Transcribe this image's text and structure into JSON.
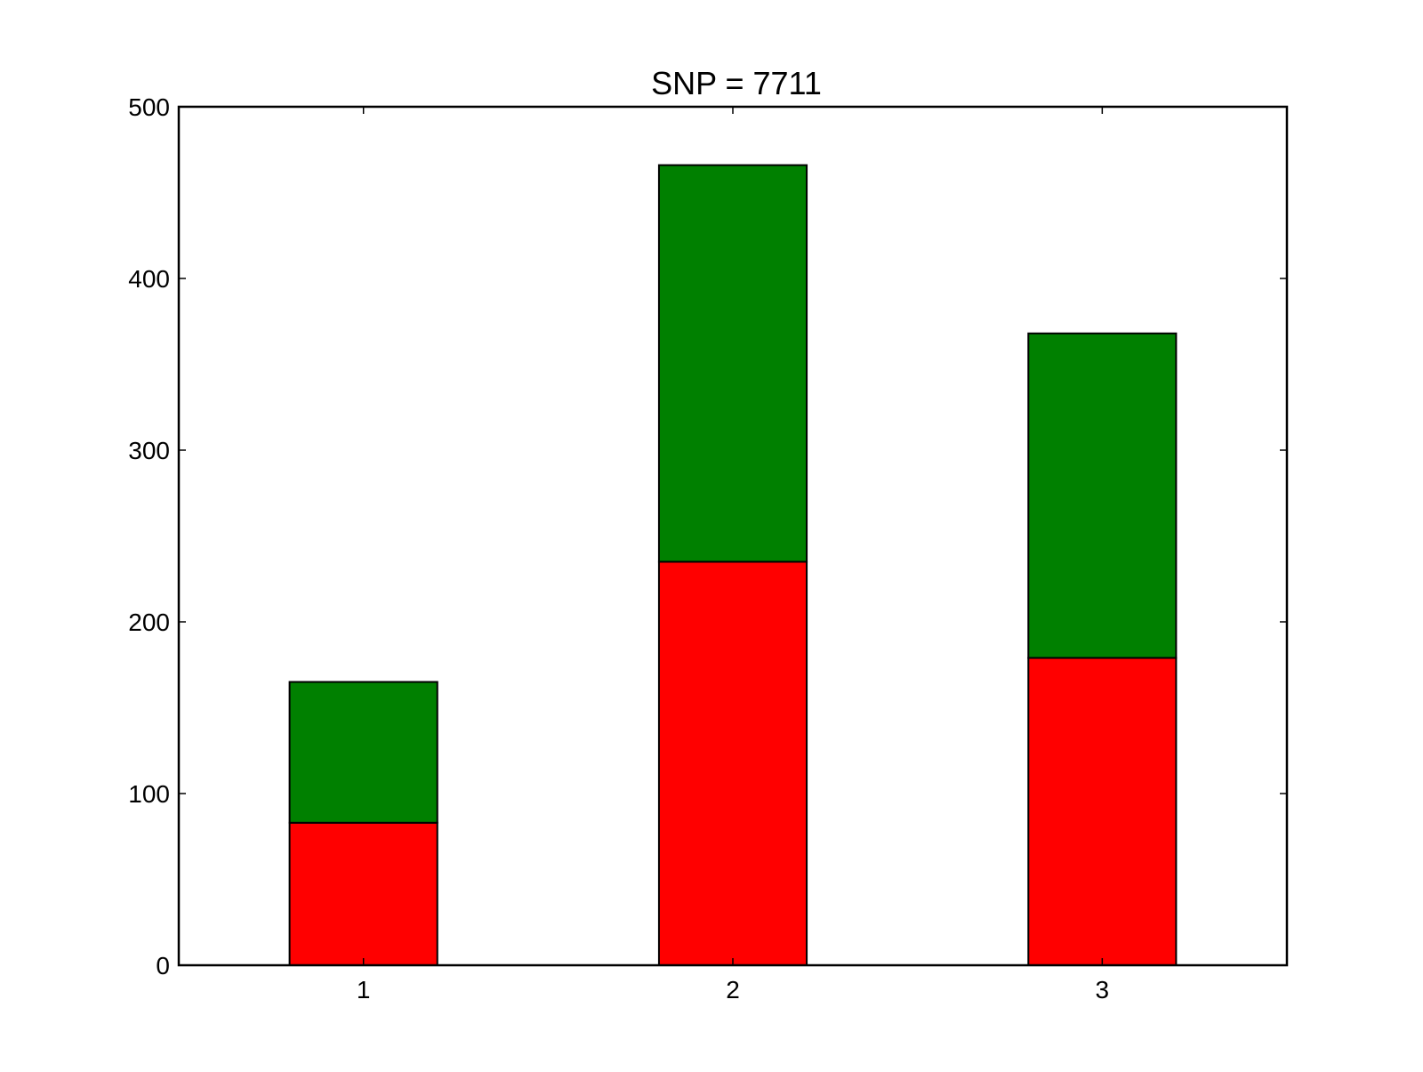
{
  "chart_data": {
    "type": "bar",
    "stacked": true,
    "title": "SNP = 7711",
    "xlabel": "",
    "ylabel": "",
    "categories": [
      "1",
      "2",
      "3"
    ],
    "x_ticks": [
      "1",
      "2",
      "3"
    ],
    "y_ticks": [
      "0",
      "100",
      "200",
      "300",
      "400",
      "500"
    ],
    "ylim": [
      0,
      500
    ],
    "xlim": [
      0.5,
      3.5
    ],
    "legend": "none",
    "grid": false,
    "series": [
      {
        "values": [
          83,
          235,
          179
        ],
        "color": "#ff0000"
      },
      {
        "values": [
          82,
          231,
          189
        ],
        "color": "#008000"
      }
    ]
  }
}
